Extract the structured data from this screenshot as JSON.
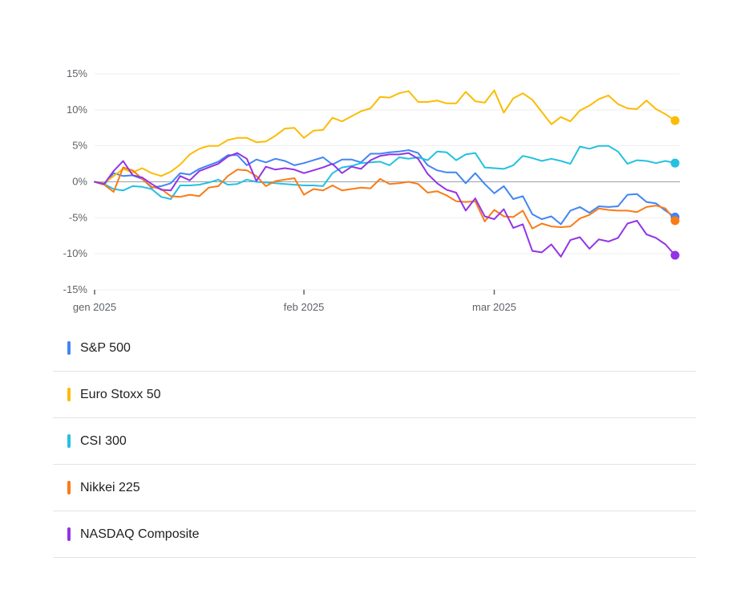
{
  "chart_data": {
    "type": "line",
    "title": "",
    "xlabel": "",
    "ylabel": "",
    "ylim": [
      -15,
      15
    ],
    "y_ticks": [
      15,
      10,
      5,
      0,
      -5,
      -10,
      -15
    ],
    "y_tick_labels": [
      "15%",
      "10%",
      "5%",
      "0%",
      "-5%",
      "-10%",
      "-15%"
    ],
    "x_ticks": [
      {
        "x": 0,
        "label": "gen 2025"
      },
      {
        "x": 22,
        "label": "feb 2025"
      },
      {
        "x": 42,
        "label": "mar 2025"
      }
    ],
    "x_range": [
      -1,
      62
    ],
    "zero_line": true,
    "legend_position": "bottom",
    "series": [
      {
        "name": "S&P 500",
        "color": "#4285f4",
        "x": [
          0,
          1,
          2,
          3,
          4,
          5,
          6,
          7,
          8,
          9,
          10,
          11,
          12,
          13,
          14,
          15,
          16,
          17,
          18,
          19,
          20,
          21,
          22,
          23,
          24,
          25,
          26,
          27,
          28,
          29,
          30,
          31,
          32,
          33,
          34,
          35,
          36,
          37,
          38,
          39,
          40,
          41,
          42,
          43,
          44,
          45,
          46,
          47,
          48,
          49,
          50,
          51,
          52,
          53,
          54,
          55,
          56,
          57,
          58,
          59,
          60,
          61
        ],
        "values": [
          0,
          -0.4,
          1.2,
          0.8,
          0.9,
          0.4,
          -0.8,
          -0.6,
          -0.2,
          1.2,
          1.0,
          1.8,
          2.3,
          2.8,
          3.7,
          3.7,
          2.3,
          3.1,
          2.7,
          3.2,
          2.9,
          2.3,
          2.6,
          3.0,
          3.4,
          2.4,
          3.1,
          3.1,
          2.7,
          3.9,
          3.9,
          4.1,
          4.2,
          4.4,
          4.0,
          2.3,
          1.6,
          1.3,
          1.3,
          -0.2,
          1.2,
          -0.3,
          -1.6,
          -0.6,
          -2.4,
          -2.0,
          -4.5,
          -5.2,
          -4.8,
          -5.9,
          -4.0,
          -3.5,
          -4.3,
          -3.4,
          -3.5,
          -3.4,
          -1.8,
          -1.7,
          -2.8,
          -3.0,
          -4.0,
          -4.9
        ]
      },
      {
        "name": "Euro Stoxx 50",
        "color": "#fbbc04",
        "x": [
          0,
          1,
          2,
          3,
          4,
          5,
          6,
          7,
          8,
          9,
          10,
          11,
          12,
          13,
          14,
          15,
          16,
          17,
          18,
          19,
          20,
          21,
          22,
          23,
          24,
          25,
          26,
          27,
          28,
          29,
          30,
          31,
          32,
          33,
          34,
          35,
          36,
          37,
          38,
          39,
          40,
          41,
          42,
          43,
          44,
          45,
          46,
          47,
          48,
          49,
          50,
          51,
          52,
          53,
          54,
          55,
          56,
          57,
          58,
          59,
          60,
          61
        ],
        "values": [
          0,
          -0.2,
          0.8,
          1.8,
          1.3,
          1.9,
          1.2,
          0.8,
          1.4,
          2.4,
          3.8,
          4.6,
          5.0,
          5.0,
          5.8,
          6.1,
          6.1,
          5.5,
          5.6,
          6.4,
          7.4,
          7.5,
          6.1,
          7.1,
          7.2,
          8.9,
          8.4,
          9.1,
          9.8,
          10.2,
          11.8,
          11.7,
          12.3,
          12.6,
          11.1,
          11.1,
          11.3,
          10.9,
          10.9,
          12.5,
          11.2,
          11.0,
          12.7,
          9.6,
          11.6,
          12.3,
          11.4,
          9.7,
          8.0,
          9.0,
          8.4,
          9.9,
          10.6,
          11.5,
          12.0,
          10.8,
          10.2,
          10.1,
          11.3,
          10.1,
          9.4,
          8.5
        ]
      },
      {
        "name": "CSI 300",
        "color": "#24c1e0",
        "x": [
          0,
          1,
          2,
          3,
          4,
          5,
          6,
          7,
          8,
          9,
          10,
          11,
          12,
          13,
          14,
          15,
          16,
          17,
          18,
          19,
          20,
          21,
          22,
          23,
          24,
          25,
          26,
          27,
          28,
          29,
          30,
          31,
          32,
          33,
          34,
          35,
          36,
          37,
          38,
          39,
          40,
          41,
          42,
          43,
          44,
          45,
          46,
          47,
          48,
          49,
          50,
          51,
          52,
          53,
          54,
          55,
          56,
          57,
          58,
          59,
          60,
          61
        ],
        "values": [
          0,
          -0.3,
          -1.0,
          -1.2,
          -0.6,
          -0.7,
          -1.0,
          -2.1,
          -2.4,
          -0.5,
          -0.5,
          -0.4,
          -0.1,
          0.3,
          -0.4,
          -0.3,
          0.3,
          0.0,
          -0.1,
          -0.2,
          -0.3,
          -0.4,
          -0.5,
          -0.5,
          -0.6,
          1.2,
          2.0,
          2.2,
          2.6,
          2.7,
          2.8,
          2.3,
          3.4,
          3.2,
          3.4,
          3.0,
          4.2,
          4.1,
          3.0,
          3.8,
          4.0,
          2.0,
          1.9,
          1.8,
          2.3,
          3.6,
          3.3,
          2.9,
          3.2,
          2.9,
          2.5,
          4.9,
          4.6,
          5.0,
          5.0,
          4.2,
          2.5,
          3.0,
          2.9,
          2.6,
          2.9,
          2.6
        ]
      },
      {
        "name": "Nikkei 225",
        "color": "#fa7b17",
        "x": [
          0,
          1,
          2,
          3,
          4,
          5,
          6,
          7,
          8,
          9,
          10,
          11,
          12,
          13,
          14,
          15,
          16,
          17,
          18,
          19,
          20,
          21,
          22,
          23,
          24,
          25,
          26,
          27,
          28,
          29,
          30,
          31,
          32,
          33,
          34,
          35,
          36,
          37,
          38,
          39,
          40,
          41,
          42,
          43,
          44,
          45,
          46,
          47,
          48,
          49,
          50,
          51,
          52,
          53,
          54,
          55,
          56,
          57,
          58,
          59,
          60,
          61
        ],
        "values": [
          0,
          -0.4,
          -1.4,
          2.0,
          1.6,
          0.4,
          -0.7,
          -1.0,
          -2.0,
          -2.1,
          -1.8,
          -2.0,
          -0.8,
          -0.6,
          0.8,
          1.7,
          1.6,
          0.8,
          -0.6,
          0.1,
          0.3,
          0.5,
          -1.8,
          -1.0,
          -1.2,
          -0.5,
          -1.2,
          -1.0,
          -0.8,
          -0.9,
          0.4,
          -0.3,
          -0.2,
          0.0,
          -0.3,
          -1.5,
          -1.3,
          -1.9,
          -2.7,
          -2.8,
          -2.7,
          -5.5,
          -3.9,
          -4.8,
          -4.9,
          -4.0,
          -6.5,
          -5.8,
          -6.2,
          -6.3,
          -6.2,
          -5.1,
          -4.6,
          -3.7,
          -3.9,
          -4.0,
          -4.0,
          -4.2,
          -3.5,
          -3.3,
          -3.7,
          -5.4
        ]
      },
      {
        "name": "NASDAQ Composite",
        "color": "#9334e6",
        "x": [
          0,
          1,
          2,
          3,
          4,
          5,
          6,
          7,
          8,
          9,
          10,
          11,
          12,
          13,
          14,
          15,
          16,
          17,
          18,
          19,
          20,
          21,
          22,
          23,
          24,
          25,
          26,
          27,
          28,
          29,
          30,
          31,
          32,
          33,
          34,
          35,
          36,
          37,
          38,
          39,
          40,
          41,
          42,
          43,
          44,
          45,
          46,
          47,
          48,
          49,
          50,
          51,
          52,
          53,
          54,
          55,
          56,
          57,
          58,
          59,
          60,
          61
        ],
        "values": [
          0,
          -0.3,
          1.5,
          2.9,
          0.9,
          0.6,
          -0.3,
          -1.1,
          -1.2,
          0.8,
          0.2,
          1.5,
          2.0,
          2.5,
          3.5,
          4.0,
          3.2,
          0.1,
          2.1,
          1.7,
          1.9,
          1.7,
          1.2,
          1.6,
          2.0,
          2.5,
          1.2,
          2.1,
          1.8,
          3.0,
          3.6,
          3.8,
          3.8,
          4.0,
          3.2,
          1.1,
          -0.2,
          -1.1,
          -1.5,
          -4.0,
          -2.3,
          -4.8,
          -5.2,
          -3.8,
          -6.4,
          -5.9,
          -9.6,
          -9.8,
          -8.7,
          -10.4,
          -8.1,
          -7.7,
          -9.3,
          -8.0,
          -8.3,
          -7.8,
          -5.8,
          -5.4,
          -7.3,
          -7.8,
          -8.7,
          -10.2
        ]
      }
    ]
  }
}
